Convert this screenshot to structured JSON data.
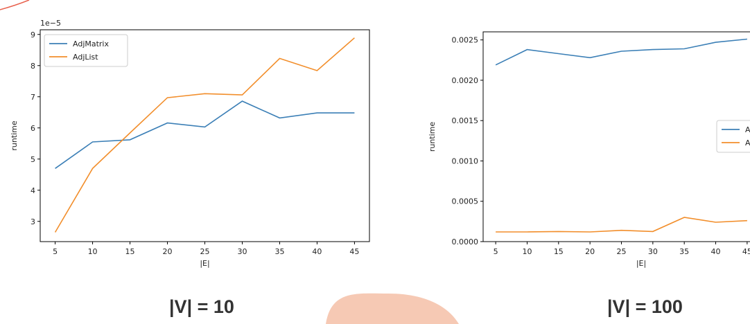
{
  "captions": {
    "left": "|V| = 10",
    "right": "|V| = 100"
  },
  "colors": {
    "adjmatrix": "#3b7fb6",
    "adjlist": "#f28e2b",
    "decor_blob": "#f6c9b4",
    "decor_arc": "#e8604c"
  },
  "chart_data": [
    {
      "type": "line",
      "title": "",
      "xlabel": "|E|",
      "ylabel": "runtime",
      "offset_text": "1e−5",
      "x": [
        5,
        10,
        15,
        20,
        25,
        30,
        35,
        40,
        45
      ],
      "xlim": [
        3,
        47
      ],
      "ylim": [
        2.35,
        9.15
      ],
      "x_ticks": [
        "5",
        "10",
        "15",
        "20",
        "25",
        "30",
        "35",
        "40",
        "45"
      ],
      "y_ticks": [
        "3",
        "4",
        "5",
        "6",
        "7",
        "8",
        "9"
      ],
      "legend": "top-left",
      "grid": false,
      "series": [
        {
          "name": "AdjMatrix",
          "values": [
            4.7,
            5.55,
            5.62,
            6.16,
            6.03,
            6.86,
            6.32,
            6.48,
            6.48
          ]
        },
        {
          "name": "AdjList",
          "values": [
            2.65,
            4.7,
            5.84,
            6.97,
            7.1,
            7.06,
            8.23,
            7.84,
            8.89
          ]
        }
      ]
    },
    {
      "type": "line",
      "title": "",
      "xlabel": "|E|",
      "ylabel": "runtime",
      "x": [
        5,
        10,
        15,
        20,
        25,
        30,
        35,
        40,
        45
      ],
      "xlim": [
        3,
        47
      ],
      "ylim": [
        0,
        0.0026
      ],
      "x_ticks": [
        "5",
        "10",
        "15",
        "20",
        "25",
        "30",
        "35",
        "40",
        "45"
      ],
      "y_ticks": [
        "0.0000",
        "0.0005",
        "0.0010",
        "0.0015",
        "0.0020",
        "0.0025"
      ],
      "legend": "center-right",
      "grid": false,
      "series": [
        {
          "name": "AdjMatrix",
          "values": [
            0.00219,
            0.00238,
            0.00233,
            0.00228,
            0.00236,
            0.00238,
            0.00239,
            0.00247,
            0.00251
          ]
        },
        {
          "name": "AdjList",
          "values": [
            0.00012,
            0.00012,
            0.000125,
            0.00012,
            0.00014,
            0.000125,
            0.0003,
            0.00024,
            0.00026
          ]
        }
      ]
    }
  ]
}
